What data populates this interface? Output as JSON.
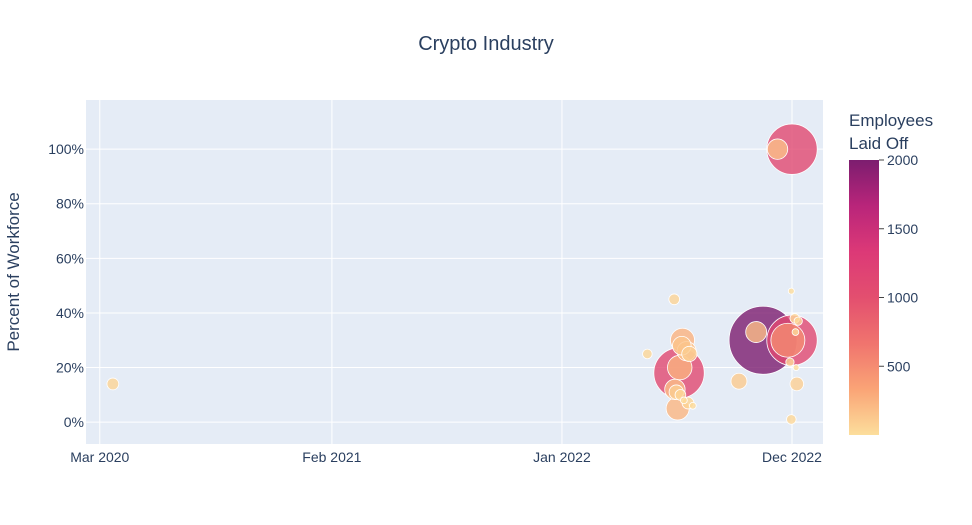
{
  "chart_data": {
    "type": "scatter",
    "title": "Crypto Industry",
    "xlabel": "",
    "ylabel": "Percent of Workforce",
    "x_ticks": [
      "Mar 2020",
      "Feb 2021",
      "Jan 2022",
      "Dec 2022"
    ],
    "x_tick_dates": [
      "2020-03-01",
      "2021-02-01",
      "2022-01-01",
      "2022-12-01"
    ],
    "xlim": [
      "2020-02-10",
      "2023-01-15"
    ],
    "y_ticks": [
      "0%",
      "20%",
      "40%",
      "60%",
      "80%",
      "100%"
    ],
    "y_tick_values": [
      0,
      0.2,
      0.4,
      0.6,
      0.8,
      1.0
    ],
    "ylim": [
      -0.08,
      1.18
    ],
    "grid": true,
    "plot_background": "#e5ecf6",
    "colorscale": [
      "#fcde9c",
      "#faa476",
      "#f0746e",
      "#e34f6f",
      "#dc3977",
      "#b9257a",
      "#7c1d6f"
    ],
    "colorbar": {
      "title_lines": [
        "Employees",
        "Laid Off"
      ],
      "ticks": [
        "500",
        "1000",
        "1500",
        "2000"
      ],
      "tick_values": [
        500,
        1000,
        1500,
        2000
      ],
      "range": [
        0,
        2000
      ]
    },
    "points": [
      {
        "date": "2020-03-20",
        "percent": 0.14,
        "laid_off": 60
      },
      {
        "date": "2022-05-05",
        "percent": 0.25,
        "laid_off": 40
      },
      {
        "date": "2022-06-13",
        "percent": 0.45,
        "laid_off": 50
      },
      {
        "date": "2022-06-14",
        "percent": 0.12,
        "laid_off": 180
      },
      {
        "date": "2022-06-16",
        "percent": 0.11,
        "laid_off": 90
      },
      {
        "date": "2022-06-18",
        "percent": 0.05,
        "laid_off": 230
      },
      {
        "date": "2022-06-20",
        "percent": 0.18,
        "laid_off": 1100
      },
      {
        "date": "2022-06-21",
        "percent": 0.2,
        "laid_off": 260
      },
      {
        "date": "2022-06-22",
        "percent": 0.1,
        "laid_off": 50
      },
      {
        "date": "2022-06-24",
        "percent": 0.28,
        "laid_off": 150
      },
      {
        "date": "2022-06-25",
        "percent": 0.3,
        "laid_off": 250
      },
      {
        "date": "2022-06-27",
        "percent": 0.08,
        "laid_off": 20
      },
      {
        "date": "2022-07-01",
        "percent": 0.26,
        "laid_off": 160
      },
      {
        "date": "2022-07-03",
        "percent": 0.07,
        "laid_off": 60
      },
      {
        "date": "2022-07-05",
        "percent": 0.25,
        "laid_off": 100
      },
      {
        "date": "2022-07-10",
        "percent": 0.06,
        "laid_off": 20
      },
      {
        "date": "2022-09-15",
        "percent": 0.15,
        "laid_off": 110
      },
      {
        "date": "2022-10-10",
        "percent": 0.33,
        "laid_off": 190
      },
      {
        "date": "2022-10-20",
        "percent": 0.3,
        "laid_off": 2000
      },
      {
        "date": "2022-11-10",
        "percent": 1.0,
        "laid_off": 180
      },
      {
        "date": "2022-11-25",
        "percent": 0.3,
        "laid_off": 500
      },
      {
        "date": "2022-11-28",
        "percent": 0.22,
        "laid_off": 30
      },
      {
        "date": "2022-11-30",
        "percent": 0.01,
        "laid_off": 40
      },
      {
        "date": "2022-11-30",
        "percent": 0.48,
        "laid_off": 10
      },
      {
        "date": "2022-12-05",
        "percent": 0.38,
        "laid_off": 40
      },
      {
        "date": "2022-12-06",
        "percent": 0.33,
        "laid_off": 20
      },
      {
        "date": "2022-12-07",
        "percent": 0.2,
        "laid_off": 10
      },
      {
        "date": "2022-12-08",
        "percent": 0.14,
        "laid_off": 80
      },
      {
        "date": "2022-12-10",
        "percent": 0.37,
        "laid_off": 30
      },
      {
        "date": "2022-12-01",
        "percent": 0.3,
        "laid_off": 1100
      },
      {
        "date": "2022-12-01",
        "percent": 1.0,
        "laid_off": 1100
      }
    ]
  }
}
